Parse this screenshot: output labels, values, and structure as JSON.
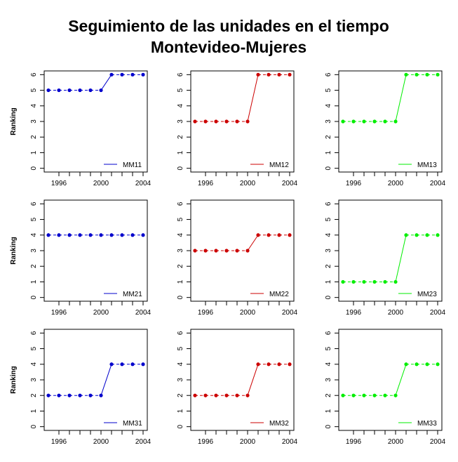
{
  "title_line1": "Seguimiento de las unidades en el tiempo",
  "title_line2": "Montevideo-Mujeres",
  "chart_data": {
    "type": "line",
    "layout": "3x3 small multiples",
    "x": [
      1995,
      1996,
      1997,
      1998,
      1999,
      2000,
      2001,
      2002,
      2003,
      2004
    ],
    "x_ticks": [
      1996,
      2000,
      2004
    ],
    "x_tick_labels": [
      "1996",
      "2000",
      "2004"
    ],
    "ylabel": "Ranking",
    "ylim": [
      0,
      6
    ],
    "y_ticks": [
      0,
      1,
      2,
      3,
      4,
      5,
      6
    ],
    "y_tick_labels": [
      "0",
      "1",
      "2",
      "3",
      "4",
      "5",
      "6"
    ],
    "legend_position": "bottom-right",
    "panels": [
      {
        "name": "MM11",
        "color": "#0000cc",
        "values": [
          5,
          5,
          5,
          5,
          5,
          5,
          6,
          6,
          6,
          6
        ]
      },
      {
        "name": "MM12",
        "color": "#cc0000",
        "values": [
          3,
          3,
          3,
          3,
          3,
          3,
          6,
          6,
          6,
          6
        ]
      },
      {
        "name": "MM13",
        "color": "#00ee00",
        "values": [
          3,
          3,
          3,
          3,
          3,
          3,
          6,
          6,
          6,
          6
        ]
      },
      {
        "name": "MM21",
        "color": "#0000cc",
        "values": [
          4,
          4,
          4,
          4,
          4,
          4,
          4,
          4,
          4,
          4
        ]
      },
      {
        "name": "MM22",
        "color": "#cc0000",
        "values": [
          3,
          3,
          3,
          3,
          3,
          3,
          4,
          4,
          4,
          4
        ]
      },
      {
        "name": "MM23",
        "color": "#00ee00",
        "values": [
          1,
          1,
          1,
          1,
          1,
          1,
          4,
          4,
          4,
          4
        ]
      },
      {
        "name": "MM31",
        "color": "#0000cc",
        "values": [
          2,
          2,
          2,
          2,
          2,
          2,
          4,
          4,
          4,
          4
        ]
      },
      {
        "name": "MM32",
        "color": "#cc0000",
        "values": [
          2,
          2,
          2,
          2,
          2,
          2,
          4,
          4,
          4,
          4
        ]
      },
      {
        "name": "MM33",
        "color": "#00ee00",
        "values": [
          2,
          2,
          2,
          2,
          2,
          2,
          4,
          4,
          4,
          4
        ]
      }
    ]
  }
}
